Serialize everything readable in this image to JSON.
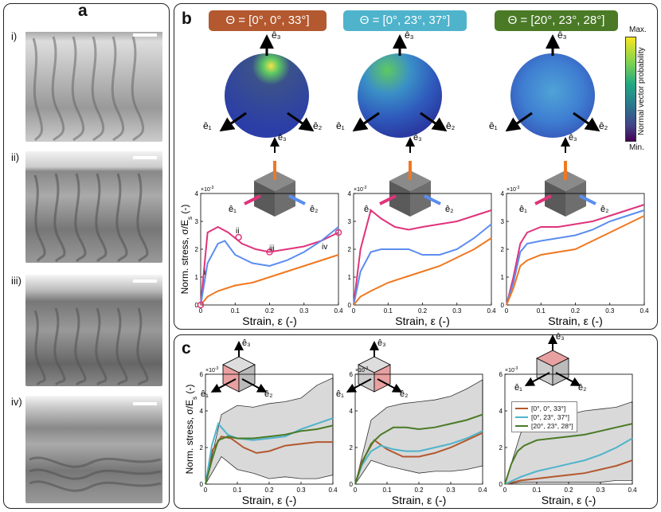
{
  "panel_a": {
    "letter": "a",
    "labels": [
      "i)",
      "ii)",
      "iii)",
      "iv)"
    ]
  },
  "panel_b": {
    "letter": "b",
    "thetas": [
      {
        "label": "Θ = [0°, 0°, 33°]",
        "color": "#b3582f"
      },
      {
        "label": "Θ = [0°, 23°, 37°]",
        "color": "#4fb3cc"
      },
      {
        "label": "Θ = [20°, 23°, 28°]",
        "color": "#4a7a26"
      }
    ],
    "colorbar": {
      "max": "Max.",
      "min": "Min.",
      "title": "Normal vector probability"
    },
    "axis_labels": {
      "e1": "ê₁",
      "e2": "ê₂",
      "e3": "ê₃"
    },
    "point_labels": [
      "i",
      "ii",
      "iii",
      "iv"
    ],
    "ylabel": "Norm. stress, σ/E",
    "ylabel_sub": "s",
    "ylabel_unit": " (-)",
    "xlabel": "Strain, ε (-)",
    "exponent": "×10",
    "exponent_power": "-3"
  },
  "panel_c": {
    "letter": "c",
    "ylabel": "Norm. stress, σ/E",
    "ylabel_sub": "s",
    "ylabel_unit": " (-)",
    "xlabel": "Strain, ε (-)",
    "legend": [
      {
        "label": "[0°, 0°, 33°]",
        "color": "#b3582f"
      },
      {
        "label": "[0°, 23°, 37°]",
        "color": "#4fb3cc"
      },
      {
        "label": "[20°, 23°, 28°]",
        "color": "#4a7a26"
      }
    ]
  },
  "chart_data": [
    {
      "type": "line",
      "panel": "b-1",
      "xlabel": "Strain, ε (-)",
      "ylabel": "Norm. stress, σ/Es (-)",
      "xlim": [
        0,
        0.4
      ],
      "ylim": [
        0,
        0.004
      ],
      "yscale_exponent": "×10^-3",
      "x_ticks": [
        "0",
        "0.1",
        "0.2",
        "0.3",
        "0.4"
      ],
      "y_ticks": [
        "0",
        "1",
        "2",
        "3",
        "4"
      ],
      "series": [
        {
          "color": "#e0337a",
          "x": [
            0,
            0.02,
            0.05,
            0.08,
            0.12,
            0.16,
            0.2,
            0.25,
            0.3,
            0.35,
            0.4
          ],
          "y": [
            0,
            0.0026,
            0.0028,
            0.0026,
            0.0022,
            0.002,
            0.0019,
            0.002,
            0.0021,
            0.0023,
            0.0026
          ]
        },
        {
          "color": "#5b8def",
          "x": [
            0,
            0.02,
            0.05,
            0.07,
            0.1,
            0.15,
            0.2,
            0.25,
            0.3,
            0.35,
            0.4
          ],
          "y": [
            0,
            0.0015,
            0.0022,
            0.0023,
            0.0018,
            0.0015,
            0.0014,
            0.0016,
            0.0019,
            0.0023,
            0.0028
          ]
        },
        {
          "color": "#f07820",
          "x": [
            0,
            0.02,
            0.05,
            0.1,
            0.15,
            0.2,
            0.25,
            0.3,
            0.35,
            0.4
          ],
          "y": [
            0,
            0.0003,
            0.0005,
            0.0007,
            0.0008,
            0.001,
            0.0012,
            0.0014,
            0.0016,
            0.0018
          ]
        }
      ]
    },
    {
      "type": "line",
      "panel": "b-2",
      "xlabel": "Strain, ε (-)",
      "xlim": [
        0,
        0.4
      ],
      "ylim": [
        0,
        0.004
      ],
      "x_ticks": [
        "0",
        "0.1",
        "0.2",
        "0.3",
        "0.4"
      ],
      "y_ticks": [
        "0",
        "1",
        "2",
        "3",
        "4"
      ],
      "series": [
        {
          "color": "#e0337a",
          "x": [
            0,
            0.02,
            0.05,
            0.08,
            0.12,
            0.16,
            0.2,
            0.25,
            0.3,
            0.35,
            0.4
          ],
          "y": [
            0,
            0.002,
            0.0034,
            0.0031,
            0.0028,
            0.0027,
            0.0028,
            0.0029,
            0.003,
            0.0032,
            0.0034
          ]
        },
        {
          "color": "#5b8def",
          "x": [
            0,
            0.02,
            0.05,
            0.08,
            0.12,
            0.16,
            0.2,
            0.25,
            0.3,
            0.35,
            0.4
          ],
          "y": [
            0,
            0.0012,
            0.0019,
            0.002,
            0.002,
            0.002,
            0.0018,
            0.0018,
            0.002,
            0.0024,
            0.0029
          ]
        },
        {
          "color": "#f07820",
          "x": [
            0,
            0.02,
            0.05,
            0.1,
            0.15,
            0.2,
            0.25,
            0.3,
            0.35,
            0.4
          ],
          "y": [
            0,
            0.0003,
            0.0005,
            0.0008,
            0.001,
            0.0012,
            0.0014,
            0.0017,
            0.002,
            0.0024
          ]
        }
      ]
    },
    {
      "type": "line",
      "panel": "b-3",
      "xlabel": "Strain, ε (-)",
      "xlim": [
        0,
        0.4
      ],
      "ylim": [
        0,
        0.004
      ],
      "x_ticks": [
        "0",
        "0.1",
        "0.2",
        "0.3",
        "0.4"
      ],
      "y_ticks": [
        "0",
        "1",
        "2",
        "3",
        "4"
      ],
      "series": [
        {
          "color": "#e0337a",
          "x": [
            0,
            0.02,
            0.04,
            0.06,
            0.1,
            0.15,
            0.2,
            0.25,
            0.3,
            0.35,
            0.4
          ],
          "y": [
            0,
            0.001,
            0.0022,
            0.0026,
            0.0028,
            0.0028,
            0.0029,
            0.003,
            0.0032,
            0.0034,
            0.0036
          ]
        },
        {
          "color": "#5b8def",
          "x": [
            0,
            0.02,
            0.04,
            0.06,
            0.1,
            0.15,
            0.2,
            0.25,
            0.3,
            0.35,
            0.4
          ],
          "y": [
            0,
            0.0008,
            0.0019,
            0.0022,
            0.0023,
            0.0024,
            0.0025,
            0.0027,
            0.003,
            0.0032,
            0.0034
          ]
        },
        {
          "color": "#f07820",
          "x": [
            0,
            0.02,
            0.04,
            0.06,
            0.1,
            0.15,
            0.2,
            0.25,
            0.3,
            0.35,
            0.4
          ],
          "y": [
            0,
            0.0006,
            0.0014,
            0.0016,
            0.0018,
            0.0019,
            0.002,
            0.0023,
            0.0026,
            0.0029,
            0.0032
          ]
        }
      ]
    },
    {
      "type": "area",
      "panel": "c-1",
      "xlabel": "Strain, ε (-)",
      "ylabel": "Norm. stress, σ/Es (-)",
      "xlim": [
        0,
        0.4
      ],
      "ylim": [
        0,
        0.006
      ],
      "x_ticks": [
        "0",
        "0.1",
        "0.2",
        "0.3",
        "0.4"
      ],
      "y_ticks": [
        "0",
        "2",
        "4",
        "6"
      ],
      "band": {
        "x": [
          0,
          0.05,
          0.1,
          0.15,
          0.2,
          0.25,
          0.3,
          0.35,
          0.4
        ],
        "upper": [
          0,
          0.0038,
          0.0043,
          0.0042,
          0.0044,
          0.0045,
          0.0047,
          0.0054,
          0.0058
        ],
        "lower": [
          0,
          0.0015,
          0.0008,
          0.0006,
          0.0003,
          0.0004,
          0.0003,
          0.0003,
          0.0005
        ]
      },
      "series": [
        {
          "name": "[0°, 0°, 33°]",
          "color": "#b3582f",
          "x": [
            0,
            0.02,
            0.05,
            0.08,
            0.12,
            0.16,
            0.2,
            0.25,
            0.3,
            0.35,
            0.4
          ],
          "y": [
            0,
            0.0018,
            0.0026,
            0.0025,
            0.002,
            0.0017,
            0.0018,
            0.0021,
            0.0022,
            0.0023,
            0.0023
          ]
        },
        {
          "name": "[0°, 23°, 37°]",
          "color": "#4fb3cc",
          "x": [
            0,
            0.02,
            0.04,
            0.07,
            0.1,
            0.15,
            0.2,
            0.25,
            0.3,
            0.35,
            0.4
          ],
          "y": [
            0,
            0.0021,
            0.0033,
            0.0027,
            0.0025,
            0.0024,
            0.0025,
            0.0026,
            0.003,
            0.0033,
            0.0036
          ]
        },
        {
          "name": "[20°, 23°, 28°]",
          "color": "#4a7a26",
          "x": [
            0,
            0.02,
            0.04,
            0.07,
            0.1,
            0.15,
            0.2,
            0.25,
            0.3,
            0.35,
            0.4
          ],
          "y": [
            0,
            0.0013,
            0.0024,
            0.0026,
            0.0025,
            0.0025,
            0.0026,
            0.0027,
            0.0029,
            0.003,
            0.0032
          ]
        }
      ]
    },
    {
      "type": "area",
      "panel": "c-2",
      "xlabel": "Strain, ε (-)",
      "xlim": [
        0,
        0.4
      ],
      "ylim": [
        0,
        0.006
      ],
      "x_ticks": [
        "0",
        "0.1",
        "0.2",
        "0.3",
        "0.4"
      ],
      "y_ticks": [
        "0",
        "2",
        "4",
        "6"
      ],
      "band": {
        "x": [
          0,
          0.05,
          0.1,
          0.15,
          0.2,
          0.25,
          0.3,
          0.35,
          0.4
        ],
        "upper": [
          0,
          0.0035,
          0.0042,
          0.0044,
          0.0045,
          0.0046,
          0.0048,
          0.0052,
          0.0057
        ],
        "lower": [
          0,
          0.0013,
          0.001,
          0.0008,
          0.0006,
          0.0007,
          0.0007,
          0.0008,
          0.001
        ]
      },
      "series": [
        {
          "name": "[0°, 0°, 33°]",
          "color": "#b3582f",
          "x": [
            0,
            0.02,
            0.06,
            0.1,
            0.15,
            0.2,
            0.25,
            0.3,
            0.35,
            0.4
          ],
          "y": [
            0,
            0.0012,
            0.0024,
            0.0019,
            0.0015,
            0.0015,
            0.0017,
            0.002,
            0.0024,
            0.0028
          ]
        },
        {
          "name": "[0°, 23°, 37°]",
          "color": "#4fb3cc",
          "x": [
            0,
            0.02,
            0.05,
            0.08,
            0.12,
            0.16,
            0.2,
            0.25,
            0.3,
            0.35,
            0.4
          ],
          "y": [
            0,
            0.001,
            0.0018,
            0.0021,
            0.0019,
            0.0018,
            0.0018,
            0.002,
            0.0022,
            0.0025,
            0.0029
          ]
        },
        {
          "name": "[20°, 23°, 28°]",
          "color": "#4a7a26",
          "x": [
            0,
            0.02,
            0.05,
            0.08,
            0.12,
            0.16,
            0.2,
            0.25,
            0.3,
            0.35,
            0.4
          ],
          "y": [
            0,
            0.0011,
            0.0022,
            0.0027,
            0.0031,
            0.0031,
            0.003,
            0.0031,
            0.0033,
            0.0035,
            0.0038
          ]
        }
      ]
    },
    {
      "type": "area",
      "panel": "c-3",
      "xlabel": "Strain, ε (-)",
      "xlim": [
        0,
        0.4
      ],
      "ylim": [
        0,
        0.006
      ],
      "x_ticks": [
        "0",
        "0.1",
        "0.2",
        "0.3",
        "0.4"
      ],
      "y_ticks": [
        "0",
        "2",
        "4",
        "6"
      ],
      "band": {
        "x": [
          0,
          0.05,
          0.1,
          0.15,
          0.2,
          0.25,
          0.3,
          0.35,
          0.4
        ],
        "upper": [
          0,
          0.0028,
          0.0034,
          0.0036,
          0.0038,
          0.004,
          0.0041,
          0.0042,
          0.0045
        ],
        "lower": [
          0,
          0.0001,
          0.0001,
          0.0001,
          0.0001,
          0.0001,
          0.0001,
          0.0002,
          0.0002
        ]
      },
      "series": [
        {
          "name": "[0°, 0°, 33°]",
          "color": "#b3582f",
          "x": [
            0,
            0.05,
            0.1,
            0.15,
            0.2,
            0.25,
            0.3,
            0.35,
            0.4
          ],
          "y": [
            0,
            0.0002,
            0.0003,
            0.0004,
            0.0005,
            0.0006,
            0.0008,
            0.001,
            0.0013
          ]
        },
        {
          "name": "[0°, 23°, 37°]",
          "color": "#4fb3cc",
          "x": [
            0,
            0.05,
            0.1,
            0.15,
            0.2,
            0.25,
            0.3,
            0.35,
            0.4
          ],
          "y": [
            0,
            0.0004,
            0.0007,
            0.0009,
            0.0011,
            0.0013,
            0.0016,
            0.002,
            0.0025
          ]
        },
        {
          "name": "[20°, 23°, 28°]",
          "color": "#4a7a26",
          "x": [
            0,
            0.02,
            0.04,
            0.06,
            0.1,
            0.15,
            0.2,
            0.25,
            0.3,
            0.35,
            0.4
          ],
          "y": [
            0,
            0.0011,
            0.0018,
            0.0021,
            0.0024,
            0.0025,
            0.0026,
            0.0027,
            0.0029,
            0.0031,
            0.0033
          ]
        }
      ]
    }
  ]
}
